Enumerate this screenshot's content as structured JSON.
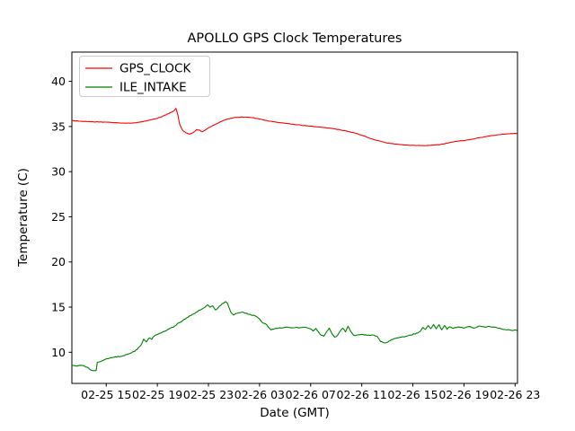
{
  "chart_data": {
    "type": "line",
    "title": "APOLLO GPS Clock Temperatures",
    "xlabel": "Date (GMT)",
    "ylabel": "Temperature (C)",
    "x_unit_note": "hours since 02-25 00:00 GMT",
    "xlim": [
      12.31,
      47.19
    ],
    "ylim": [
      6.55,
      43.24
    ],
    "grid": false,
    "x_ticks": {
      "positions": [
        15,
        19,
        23,
        27,
        31,
        35,
        39,
        43,
        47
      ],
      "labels": [
        "02-25 15",
        "02-25 19",
        "02-25 23",
        "02-26 03",
        "02-26 07",
        "02-26 11",
        "02-26 15",
        "02-26 19",
        "02-26 23"
      ]
    },
    "y_ticks": {
      "positions": [
        10,
        15,
        20,
        25,
        30,
        35,
        40
      ],
      "labels": [
        "10",
        "15",
        "20",
        "25",
        "30",
        "35",
        "40"
      ]
    },
    "legend": {
      "position": "upper left",
      "entries": [
        {
          "label": "GPS_CLOCK",
          "color": "#ff0000"
        },
        {
          "label": "ILE_INTAKE",
          "color": "#008000"
        }
      ]
    },
    "series": [
      {
        "name": "GPS_CLOCK",
        "color": "#ff0000",
        "noise_amp": 0.045,
        "points": [
          [
            12.31,
            35.65
          ],
          [
            13.36,
            35.55
          ],
          [
            14.42,
            35.5
          ],
          [
            15.47,
            35.45
          ],
          [
            16.53,
            35.35
          ],
          [
            17.23,
            35.4
          ],
          [
            18.07,
            35.6
          ],
          [
            18.99,
            35.9
          ],
          [
            19.69,
            36.3
          ],
          [
            20.11,
            36.6
          ],
          [
            20.32,
            36.75
          ],
          [
            20.45,
            37.0
          ],
          [
            20.6,
            36.3
          ],
          [
            20.74,
            35.3
          ],
          [
            20.95,
            34.6
          ],
          [
            21.24,
            34.3
          ],
          [
            21.52,
            34.15
          ],
          [
            21.8,
            34.3
          ],
          [
            22.08,
            34.65
          ],
          [
            22.29,
            34.6
          ],
          [
            22.5,
            34.4
          ],
          [
            22.78,
            34.65
          ],
          [
            23.13,
            34.95
          ],
          [
            23.62,
            35.3
          ],
          [
            24.12,
            35.65
          ],
          [
            24.54,
            35.85
          ],
          [
            25.1,
            36.0
          ],
          [
            25.66,
            36.05
          ],
          [
            26.36,
            36.0
          ],
          [
            27.07,
            35.8
          ],
          [
            27.77,
            35.6
          ],
          [
            28.47,
            35.45
          ],
          [
            29.32,
            35.3
          ],
          [
            30.23,
            35.15
          ],
          [
            31.28,
            35.0
          ],
          [
            32.34,
            34.85
          ],
          [
            33.25,
            34.65
          ],
          [
            33.95,
            34.45
          ],
          [
            34.52,
            34.25
          ],
          [
            35.08,
            34.0
          ],
          [
            35.64,
            33.7
          ],
          [
            36.2,
            33.45
          ],
          [
            36.91,
            33.2
          ],
          [
            37.61,
            33.05
          ],
          [
            38.45,
            32.95
          ],
          [
            39.37,
            32.9
          ],
          [
            40.28,
            32.9
          ],
          [
            41.12,
            33.0
          ],
          [
            41.68,
            33.15
          ],
          [
            42.18,
            33.3
          ],
          [
            42.6,
            33.4
          ],
          [
            43.09,
            33.45
          ],
          [
            43.65,
            33.6
          ],
          [
            44.36,
            33.8
          ],
          [
            45.2,
            34.0
          ],
          [
            46.04,
            34.15
          ],
          [
            46.75,
            34.22
          ],
          [
            47.17,
            34.25
          ]
        ]
      },
      {
        "name": "ILE_INTAKE",
        "color": "#008000",
        "noise_amp": 0.09,
        "points": [
          [
            12.31,
            8.55
          ],
          [
            12.73,
            8.5
          ],
          [
            13.15,
            8.55
          ],
          [
            13.5,
            8.35
          ],
          [
            13.72,
            8.1
          ],
          [
            14.0,
            7.95
          ],
          [
            14.21,
            8.0
          ],
          [
            14.3,
            8.85
          ],
          [
            14.56,
            9.0
          ],
          [
            14.91,
            9.2
          ],
          [
            15.33,
            9.4
          ],
          [
            15.82,
            9.5
          ],
          [
            16.32,
            9.6
          ],
          [
            16.81,
            9.85
          ],
          [
            17.23,
            10.1
          ],
          [
            17.51,
            10.45
          ],
          [
            17.72,
            10.8
          ],
          [
            17.93,
            11.45
          ],
          [
            18.14,
            11.15
          ],
          [
            18.35,
            11.6
          ],
          [
            18.56,
            11.45
          ],
          [
            18.77,
            11.85
          ],
          [
            19.06,
            12.0
          ],
          [
            19.41,
            12.25
          ],
          [
            19.83,
            12.5
          ],
          [
            20.25,
            12.8
          ],
          [
            20.67,
            13.25
          ],
          [
            21.09,
            13.6
          ],
          [
            21.52,
            14.0
          ],
          [
            21.94,
            14.35
          ],
          [
            22.36,
            14.7
          ],
          [
            22.71,
            15.0
          ],
          [
            22.92,
            15.25
          ],
          [
            23.13,
            14.95
          ],
          [
            23.34,
            15.15
          ],
          [
            23.55,
            14.65
          ],
          [
            23.76,
            14.9
          ],
          [
            23.97,
            15.25
          ],
          [
            24.18,
            15.45
          ],
          [
            24.33,
            15.6
          ],
          [
            24.47,
            15.45
          ],
          [
            24.61,
            14.95
          ],
          [
            24.75,
            14.4
          ],
          [
            24.96,
            14.15
          ],
          [
            25.24,
            14.3
          ],
          [
            25.52,
            14.45
          ],
          [
            25.87,
            14.35
          ],
          [
            26.29,
            14.15
          ],
          [
            26.71,
            14.0
          ],
          [
            26.99,
            13.7
          ],
          [
            27.2,
            13.3
          ],
          [
            27.48,
            13.15
          ],
          [
            27.69,
            12.8
          ],
          [
            27.9,
            12.5
          ],
          [
            28.18,
            12.6
          ],
          [
            28.6,
            12.7
          ],
          [
            29.16,
            12.75
          ],
          [
            29.73,
            12.7
          ],
          [
            30.29,
            12.75
          ],
          [
            30.85,
            12.7
          ],
          [
            31.2,
            12.35
          ],
          [
            31.41,
            12.65
          ],
          [
            31.62,
            12.2
          ],
          [
            31.83,
            11.85
          ],
          [
            32.04,
            11.8
          ],
          [
            32.25,
            12.3
          ],
          [
            32.46,
            12.65
          ],
          [
            32.67,
            12.1
          ],
          [
            32.88,
            11.65
          ],
          [
            33.09,
            11.8
          ],
          [
            33.3,
            12.35
          ],
          [
            33.51,
            12.65
          ],
          [
            33.72,
            12.3
          ],
          [
            33.93,
            12.85
          ],
          [
            34.14,
            12.35
          ],
          [
            34.35,
            11.85
          ],
          [
            34.63,
            11.9
          ],
          [
            34.98,
            11.95
          ],
          [
            35.4,
            11.9
          ],
          [
            35.85,
            11.9
          ],
          [
            36.2,
            11.75
          ],
          [
            36.48,
            11.2
          ],
          [
            36.76,
            11.05
          ],
          [
            37.04,
            11.1
          ],
          [
            37.32,
            11.4
          ],
          [
            37.68,
            11.55
          ],
          [
            38.1,
            11.65
          ],
          [
            38.52,
            11.8
          ],
          [
            38.94,
            11.95
          ],
          [
            39.29,
            12.1
          ],
          [
            39.57,
            12.3
          ],
          [
            39.78,
            12.7
          ],
          [
            39.99,
            12.5
          ],
          [
            40.2,
            12.95
          ],
          [
            40.41,
            12.65
          ],
          [
            40.62,
            13.1
          ],
          [
            40.83,
            12.6
          ],
          [
            41.05,
            13.05
          ],
          [
            41.26,
            12.45
          ],
          [
            41.47,
            13.0
          ],
          [
            41.68,
            12.55
          ],
          [
            41.89,
            12.85
          ],
          [
            42.18,
            12.65
          ],
          [
            42.53,
            12.8
          ],
          [
            42.95,
            12.7
          ],
          [
            43.37,
            12.85
          ],
          [
            43.79,
            12.7
          ],
          [
            44.22,
            12.9
          ],
          [
            44.64,
            12.8
          ],
          [
            45.06,
            12.85
          ],
          [
            45.48,
            12.75
          ],
          [
            45.9,
            12.6
          ],
          [
            46.32,
            12.5
          ],
          [
            46.75,
            12.45
          ],
          [
            47.17,
            12.4
          ]
        ]
      }
    ]
  }
}
